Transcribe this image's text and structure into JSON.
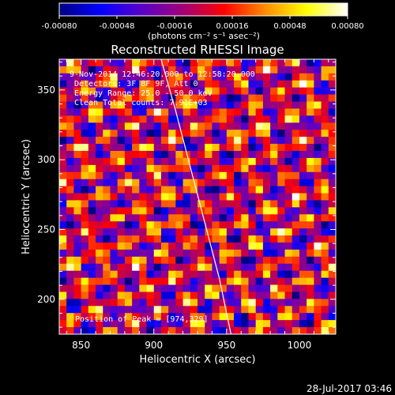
{
  "colorbar": {
    "ticks": [
      "-0.00080",
      "-0.00048",
      "-0.00016",
      "0.00016",
      "0.00048",
      "0.00080"
    ],
    "tick_values": [
      -0.0008,
      -0.00048,
      -0.00016,
      0.00016,
      0.00048,
      0.0008
    ],
    "range": [
      -0.0008,
      0.0008
    ],
    "units_label": "(photons cm⁻² s⁻¹ asec⁻²)",
    "colormap": [
      "#000080",
      "#0000ff",
      "#5a00c8",
      "#a00078",
      "#ff0000",
      "#ff8c00",
      "#ffff00",
      "#ffffff"
    ]
  },
  "chart_data": {
    "type": "heatmap",
    "title": "Reconstructed RHESSI Image",
    "xlabel": "Heliocentric X (arcsec)",
    "ylabel": "Heliocentric Y (arcsec)",
    "xlim": [
      835,
      1025
    ],
    "ylim": [
      175,
      372
    ],
    "xticks": [
      850,
      900,
      950,
      1000
    ],
    "yticks": [
      200,
      250,
      300,
      350
    ],
    "annotations": {
      "time": "9-Nov-2014 12:46:20.000 to 12:58:20.000",
      "detectors": "Detectors: 3F 8F 9F, Att 0",
      "energy": "Energy Range: 25.0 - 50.0 keV",
      "method": "Clean    Total counts: 7.91E+03",
      "peak": "Position of Peak = [974,329]"
    },
    "peak_position": [
      974,
      329
    ],
    "limb_curve": {
      "x": [
        905,
        915,
        925,
        935,
        945,
        953
      ],
      "y": [
        372,
        335,
        295,
        255,
        215,
        175
      ]
    },
    "pixel_grid": {
      "nx": 38,
      "ny": 39,
      "pattern": "periodic fringe pattern, value range -0.0008 to 0.0008"
    }
  },
  "footer": {
    "timestamp": "28-Jul-2017 03:46"
  }
}
